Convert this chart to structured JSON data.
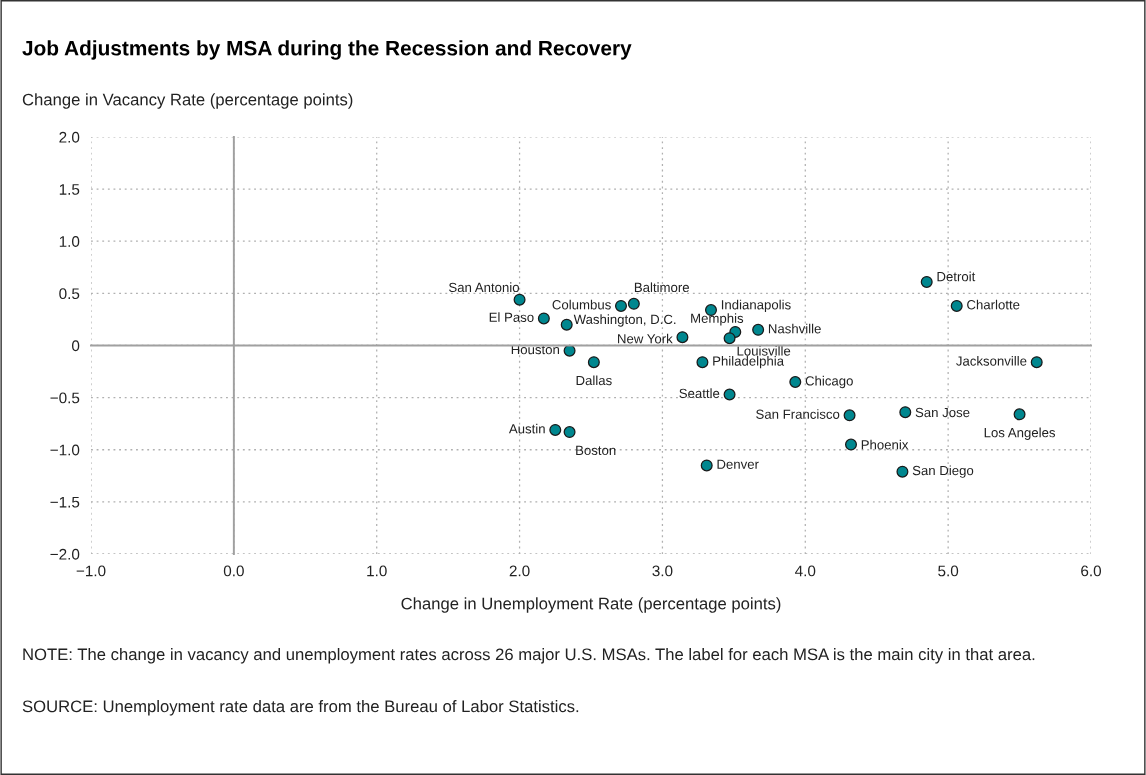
{
  "chart_data": {
    "type": "scatter",
    "title": "Job Adjustments by MSA during the Recession and Recovery",
    "xlabel": "Change in Unemployment Rate (percentage points)",
    "ylabel": "Change in Vacancy Rate (percentage points)",
    "xlim": [
      -1.0,
      6.0
    ],
    "xticks": [
      {
        "value": -1.0,
        "label": "−1.0"
      },
      {
        "value": 0.0,
        "label": "0.0"
      },
      {
        "value": 1.0,
        "label": "1.0"
      },
      {
        "value": 2.0,
        "label": "2.0"
      },
      {
        "value": 3.0,
        "label": "3.0"
      },
      {
        "value": 4.0,
        "label": "4.0"
      },
      {
        "value": 5.0,
        "label": "5.0"
      },
      {
        "value": 6.0,
        "label": "6.0"
      }
    ],
    "ylim": [
      -2.0,
      2.0
    ],
    "yticks": [
      {
        "value": -2.0,
        "label": "−2.0"
      },
      {
        "value": -1.5,
        "label": "−1.5"
      },
      {
        "value": -1.0,
        "label": "−1.0"
      },
      {
        "value": -0.5,
        "label": "−0.5"
      },
      {
        "value": 0,
        "label": "0"
      },
      {
        "value": 0.5,
        "label": "0.5"
      },
      {
        "value": 1.0,
        "label": "1.0"
      },
      {
        "value": 1.5,
        "label": "1.5"
      },
      {
        "value": 2.0,
        "label": "2.0"
      }
    ],
    "grid": true,
    "marker": "circle",
    "series": [
      {
        "color": "#00878f",
        "x": [
          2.0,
          2.17,
          2.33,
          2.35,
          2.52,
          2.71,
          2.8,
          3.14,
          3.34,
          3.51,
          3.47,
          3.67,
          3.28,
          3.47,
          3.93,
          2.25,
          2.35,
          3.31,
          4.85,
          5.06,
          5.62,
          4.31,
          4.7,
          5.5,
          4.32,
          4.68
        ],
        "values": [
          0.44,
          0.26,
          0.2,
          -0.05,
          -0.16,
          0.38,
          0.4,
          0.08,
          0.34,
          0.13,
          0.07,
          0.15,
          -0.16,
          -0.47,
          -0.35,
          -0.81,
          -0.83,
          -1.15,
          0.61,
          0.38,
          -0.16,
          -0.67,
          -0.64,
          -0.66,
          -0.95,
          -1.21
        ]
      }
    ],
    "annotations": [
      {
        "text": "San Antonio",
        "x": 2.0,
        "y": 0.44
      },
      {
        "text": "El Paso",
        "x": 2.17,
        "y": 0.26
      },
      {
        "text": "Washington, D.C.",
        "x": 2.33,
        "y": 0.2
      },
      {
        "text": "Houston",
        "x": 2.35,
        "y": -0.05
      },
      {
        "text": "Dallas",
        "x": 2.52,
        "y": -0.16
      },
      {
        "text": "Columbus",
        "x": 2.71,
        "y": 0.38
      },
      {
        "text": "Baltimore",
        "x": 2.8,
        "y": 0.4
      },
      {
        "text": "New York",
        "x": 3.14,
        "y": 0.08
      },
      {
        "text": "Indianapolis",
        "x": 3.34,
        "y": 0.34
      },
      {
        "text": "Memphis",
        "x": 3.51,
        "y": 0.13
      },
      {
        "text": "Louisville",
        "x": 3.47,
        "y": 0.07
      },
      {
        "text": "Nashville",
        "x": 3.67,
        "y": 0.15
      },
      {
        "text": "Philadelphia",
        "x": 3.28,
        "y": -0.16
      },
      {
        "text": "Seattle",
        "x": 3.47,
        "y": -0.47
      },
      {
        "text": "Chicago",
        "x": 3.93,
        "y": -0.35
      },
      {
        "text": "Austin",
        "x": 2.25,
        "y": -0.81
      },
      {
        "text": "Boston",
        "x": 2.35,
        "y": -0.83
      },
      {
        "text": "Denver",
        "x": 3.31,
        "y": -1.15
      },
      {
        "text": "Detroit",
        "x": 4.85,
        "y": 0.61
      },
      {
        "text": "Charlotte",
        "x": 5.06,
        "y": 0.38
      },
      {
        "text": "Jacksonville",
        "x": 5.62,
        "y": -0.16
      },
      {
        "text": "San Francisco",
        "x": 4.31,
        "y": -0.67
      },
      {
        "text": "San Jose",
        "x": 4.7,
        "y": -0.64
      },
      {
        "text": "Los Angeles",
        "x": 5.5,
        "y": -0.66
      },
      {
        "text": "Phoenix",
        "x": 4.32,
        "y": -0.95
      },
      {
        "text": "San Diego",
        "x": 4.68,
        "y": -1.21
      },
      "NOTE: The change in vacancy and unemployment rates across 26 major U.S. MSAs. The label for each MSA is the main city in that area.",
      "SOURCE: Unemployment rate data are from the Bureau of Labor Statistics."
    ]
  }
}
